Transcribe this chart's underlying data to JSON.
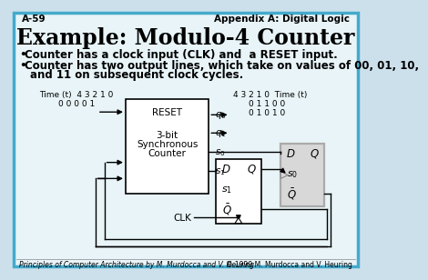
{
  "title": "Example: Modulo-4 Counter",
  "header_left": "A-59",
  "header_right": "Appendix A: Digital Logic",
  "footer_left": "Principles of Computer Architecture by M. Murdocca and V. Heuring",
  "footer_right": "© 1999 M. Murdocca and V. Heuring",
  "bullet1": "Counter has a clock input (CLK) and  a RESET input.",
  "bullet2a": "Counter has two output lines, which take on values of 00, 01, 10,",
  "bullet2b": "and 11 on subsequent clock cycles.",
  "bg_color": "#cce0ec",
  "border_color": "#44aacc",
  "inner_bg": "#e8f4f8",
  "box_fill": "#f0f0f0",
  "ff2_fill": "#d8d8d8",
  "time_left_line1": "Time (t)  4 3 2 1 0",
  "time_left_line2": "0 0 0 0 1",
  "time_right_line1": "4 3 2 1 0  Time (t)",
  "time_right_q0": "0 1 1 0 0",
  "time_right_q1": "0 1 0 1 0"
}
